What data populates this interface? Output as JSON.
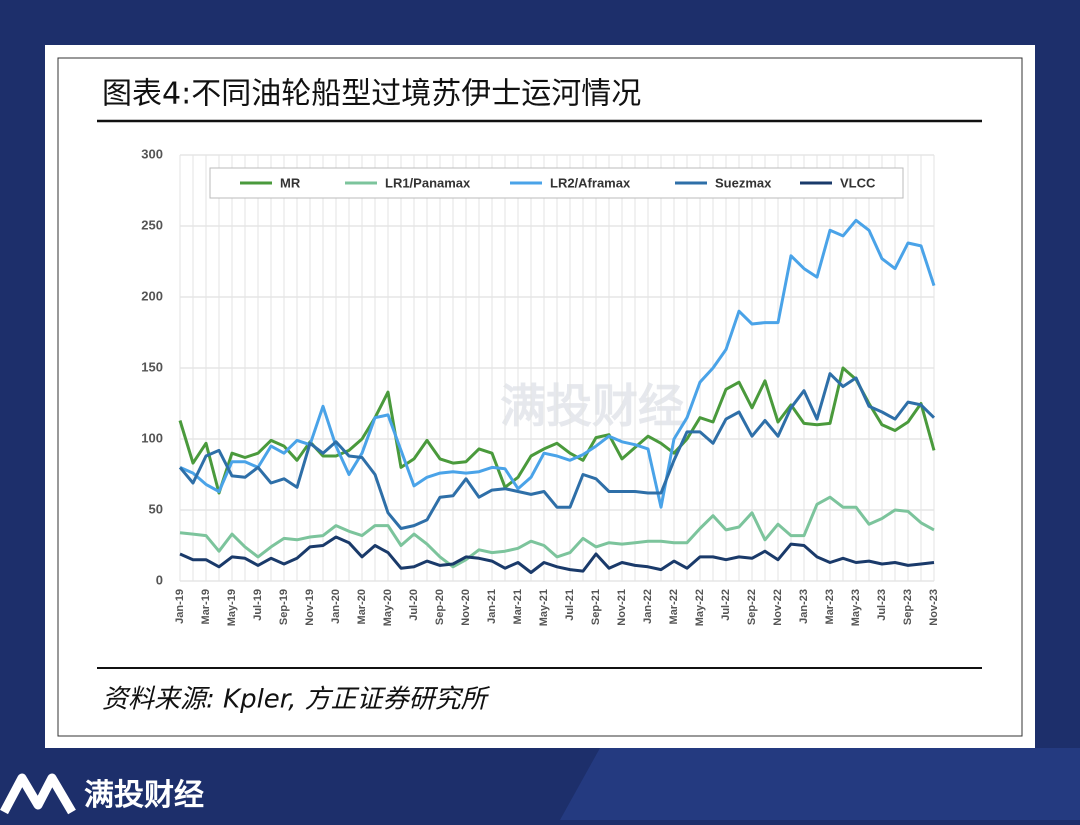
{
  "chart_data": {
    "type": "line",
    "title": "图表4:不同油轮船型过境苏伊士运河情况",
    "source": "资料来源: Kpler, 方正证券研究所",
    "brand": "满投财经",
    "categories": [
      "Jan-19",
      null,
      "Mar-19",
      null,
      "May-19",
      null,
      "Jul-19",
      null,
      "Sep-19",
      null,
      "Nov-19",
      null,
      "Jan-20",
      null,
      "Mar-20",
      null,
      "May-20",
      null,
      "Jul-20",
      null,
      "Sep-20",
      null,
      "Nov-20",
      null,
      "Jan-21",
      null,
      "Mar-21",
      null,
      "May-21",
      null,
      "Jul-21",
      null,
      "Sep-21",
      null,
      "Nov-21",
      null,
      "Jan-22",
      null,
      "Mar-22",
      null,
      "May-22",
      null,
      "Jul-22",
      null,
      "Sep-22",
      null,
      "Nov-22",
      null,
      "Jan-23",
      null,
      "Mar-23",
      null,
      "May-23",
      null,
      "Jul-23",
      null,
      "Sep-23",
      null,
      "Nov-23"
    ],
    "series": [
      {
        "name": "MR",
        "color": "#4a9a3c",
        "values": [
          113,
          83,
          97,
          62,
          90,
          87,
          90,
          99,
          95,
          85,
          98,
          88,
          88,
          92,
          100,
          115,
          133,
          80,
          86,
          99,
          86,
          83,
          84,
          93,
          90,
          66,
          73,
          88,
          93,
          97,
          90,
          85,
          101,
          103,
          86,
          94,
          102,
          97,
          90,
          100,
          115,
          112,
          135,
          140,
          122,
          141,
          112,
          124,
          111,
          110,
          111,
          150,
          142,
          125,
          110,
          106,
          112,
          125,
          92
        ]
      },
      {
        "name": "LR1/Panamax",
        "color": "#7cc49c",
        "values": [
          34,
          33,
          32,
          21,
          33,
          24,
          17,
          24,
          30,
          29,
          31,
          32,
          39,
          35,
          32,
          39,
          39,
          25,
          33,
          26,
          17,
          10,
          15,
          22,
          20,
          21,
          23,
          28,
          25,
          17,
          20,
          30,
          24,
          27,
          26,
          27,
          28,
          28,
          27,
          27,
          37,
          46,
          36,
          38,
          48,
          29,
          40,
          32,
          32,
          54,
          59,
          52,
          52,
          40,
          44,
          50,
          49,
          41,
          36
        ]
      },
      {
        "name": "LR2/Aframax",
        "color": "#4aa3e8",
        "values": [
          80,
          76,
          68,
          63,
          84,
          84,
          80,
          95,
          90,
          99,
          96,
          123,
          95,
          75,
          90,
          115,
          117,
          92,
          67,
          73,
          76,
          77,
          76,
          77,
          80,
          79,
          65,
          73,
          90,
          88,
          85,
          89,
          95,
          102,
          98,
          96,
          93,
          52,
          100,
          115,
          140,
          150,
          163,
          190,
          181,
          182,
          182,
          229,
          220,
          214,
          247,
          243,
          254,
          247,
          227,
          220,
          238,
          236,
          208
        ]
      },
      {
        "name": "Suezmax",
        "color": "#2e6fa8",
        "values": [
          80,
          69,
          88,
          92,
          74,
          73,
          80,
          69,
          72,
          66,
          97,
          90,
          98,
          88,
          87,
          75,
          48,
          37,
          39,
          43,
          59,
          60,
          72,
          59,
          64,
          65,
          63,
          61,
          63,
          52,
          52,
          75,
          72,
          63,
          63,
          63,
          62,
          62,
          85,
          105,
          105,
          97,
          114,
          119,
          102,
          113,
          102,
          122,
          134,
          114,
          146,
          137,
          143,
          123,
          119,
          114,
          126,
          124,
          115
        ]
      },
      {
        "name": "VLCC",
        "color": "#1a3a6a",
        "values": [
          19,
          15,
          15,
          10,
          17,
          16,
          11,
          16,
          12,
          16,
          24,
          25,
          31,
          27,
          17,
          25,
          20,
          9,
          10,
          14,
          11,
          12,
          17,
          16,
          14,
          9,
          13,
          6,
          13,
          10,
          8,
          7,
          19,
          9,
          13,
          11,
          10,
          8,
          14,
          9,
          17,
          17,
          15,
          17,
          16,
          21,
          15,
          26,
          25,
          17,
          13,
          16,
          13,
          14,
          12,
          13,
          11,
          12,
          13
        ]
      }
    ],
    "ylim": [
      0,
      300
    ],
    "yticks": [
      0,
      50,
      100,
      150,
      200,
      250,
      300
    ],
    "grid": true
  }
}
